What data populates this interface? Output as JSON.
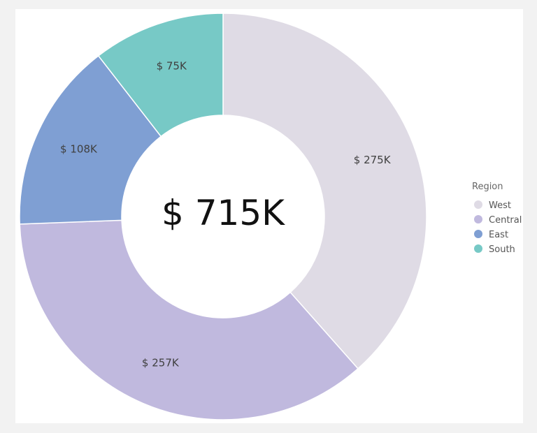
{
  "chart_data": {
    "type": "pie",
    "variant": "donut",
    "categories": [
      "West",
      "Central",
      "East",
      "South"
    ],
    "values": [
      275,
      257,
      108,
      75
    ],
    "data_labels": [
      "$ 275K",
      "$ 257K",
      "$ 108K",
      "$ 75K"
    ],
    "colors": [
      "#dfdbe5",
      "#c0b9de",
      "#7f9fd3",
      "#77c9c6"
    ],
    "center_label": "$ 715K",
    "legend": {
      "title": "Region",
      "position": "right"
    },
    "units": "thousands of dollars"
  }
}
